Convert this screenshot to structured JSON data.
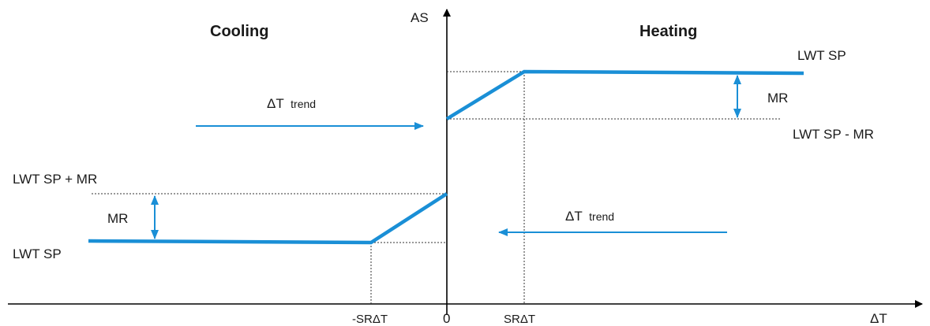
{
  "colors": {
    "accent": "#1a8fd6",
    "axis": "#000000",
    "guide": "#333333"
  },
  "axes": {
    "y_label": "AS",
    "x_label": "ΔT",
    "origin_label": "0"
  },
  "regions": {
    "cooling": "Cooling",
    "heating": "Heating"
  },
  "x_ticks": {
    "neg": "-SRΔT",
    "pos": "SRΔT"
  },
  "heating_labels": {
    "sp": "LWT SP",
    "sp_minus": "LWT SP - MR",
    "mr": "MR"
  },
  "cooling_labels": {
    "sp": "LWT SP",
    "sp_plus": "LWT SP + MR",
    "mr": "MR"
  },
  "trends": {
    "top": {
      "delta": "ΔT",
      "word": "trend",
      "direction": "right"
    },
    "bottom": {
      "delta": "ΔT",
      "word": "trend",
      "direction": "left"
    }
  }
}
